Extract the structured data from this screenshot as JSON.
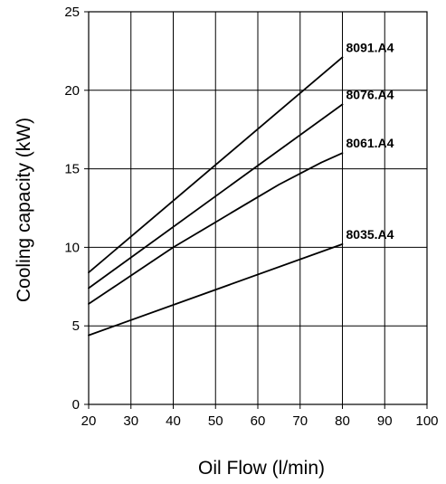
{
  "chart_data": {
    "type": "line",
    "title": "",
    "xlabel": "Oil Flow (l/min)",
    "ylabel": "Cooling capacity (kW)",
    "xlim": [
      20,
      100
    ],
    "ylim": [
      0,
      25
    ],
    "xticks": [
      20,
      30,
      40,
      50,
      60,
      70,
      80,
      90,
      100
    ],
    "yticks": [
      0,
      5,
      10,
      15,
      20,
      25
    ],
    "grid": true,
    "legend": "none",
    "colors": {
      "line": "#000000",
      "grid": "#000000",
      "background": "#ffffff"
    },
    "series": [
      {
        "name": "8091.A4",
        "x": [
          20,
          80
        ],
        "y": [
          8.4,
          22.1
        ]
      },
      {
        "name": "8076.A4",
        "x": [
          20,
          80
        ],
        "y": [
          7.4,
          19.1
        ]
      },
      {
        "name": "8061.A4",
        "x": [
          20,
          25,
          30,
          35,
          40,
          45,
          50,
          55,
          60,
          65,
          70,
          75,
          80
        ],
        "y": [
          6.4,
          7.3,
          8.2,
          9.1,
          10.0,
          10.8,
          11.6,
          12.4,
          13.2,
          14.0,
          14.7,
          15.4,
          16.0
        ]
      },
      {
        "name": "8035.A4",
        "x": [
          20,
          80
        ],
        "y": [
          4.4,
          10.2
        ]
      }
    ]
  }
}
